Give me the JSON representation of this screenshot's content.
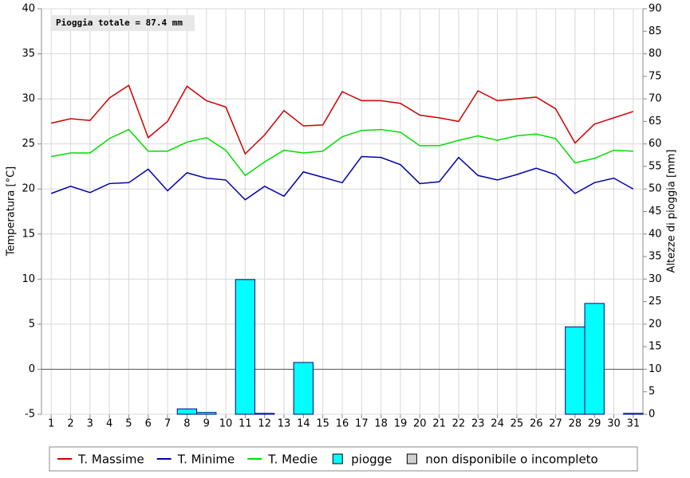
{
  "chart_data": {
    "type": "line",
    "annotation": "Pioggia totale = 87.4 mm",
    "ylabel": "Temperatura [°C]",
    "y2label": "Altezze di pioggia [mm]",
    "x": [
      1,
      2,
      3,
      4,
      5,
      6,
      7,
      8,
      9,
      10,
      11,
      12,
      13,
      14,
      15,
      16,
      17,
      18,
      19,
      20,
      21,
      22,
      23,
      24,
      25,
      26,
      27,
      28,
      29,
      30,
      31
    ],
    "xlim": [
      0.5,
      31.5
    ],
    "xticks": [
      1,
      2,
      3,
      4,
      5,
      6,
      7,
      8,
      9,
      10,
      11,
      12,
      13,
      14,
      15,
      16,
      17,
      18,
      19,
      20,
      21,
      22,
      23,
      24,
      25,
      26,
      27,
      28,
      29,
      30,
      31
    ],
    "ylim": [
      -5,
      40
    ],
    "yticks": [
      -5,
      0,
      5,
      10,
      15,
      20,
      25,
      30,
      35,
      40
    ],
    "y2lim": [
      0,
      90
    ],
    "y2ticks": [
      0,
      5,
      10,
      15,
      20,
      25,
      30,
      35,
      40,
      45,
      50,
      55,
      60,
      65,
      70,
      75,
      80,
      85,
      90
    ],
    "grid": true,
    "series": [
      {
        "name": "T. Massime",
        "color": "#cc0000",
        "type": "line",
        "values": [
          27.3,
          27.8,
          27.6,
          30.1,
          31.5,
          25.7,
          27.5,
          31.4,
          29.8,
          29.1,
          23.9,
          26.0,
          28.7,
          27.0,
          27.1,
          30.8,
          29.8,
          29.8,
          29.5,
          28.2,
          27.9,
          27.5,
          30.9,
          29.8,
          30.0,
          30.2,
          28.9,
          25.1,
          27.2,
          27.9,
          28.6
        ]
      },
      {
        "name": "T. Minime",
        "color": "#0000aa",
        "type": "line",
        "values": [
          19.5,
          20.3,
          19.6,
          20.6,
          20.7,
          22.2,
          19.8,
          21.8,
          21.2,
          21.0,
          18.8,
          20.3,
          19.2,
          21.9,
          21.3,
          20.7,
          23.6,
          23.5,
          22.7,
          20.6,
          20.8,
          23.5,
          21.5,
          21.0,
          21.6,
          22.3,
          21.6,
          19.5,
          20.7,
          21.2,
          20.0
        ]
      },
      {
        "name": "T. Medie",
        "color": "#00dd00",
        "type": "line",
        "values": [
          23.6,
          24.0,
          24.0,
          25.6,
          26.6,
          24.2,
          24.2,
          25.2,
          25.7,
          24.3,
          21.5,
          23.0,
          24.3,
          24.0,
          24.2,
          25.8,
          26.5,
          26.6,
          26.3,
          24.8,
          24.8,
          25.4,
          25.9,
          25.4,
          25.9,
          26.1,
          25.6,
          22.9,
          23.4,
          24.3,
          24.2
        ]
      },
      {
        "name": "piogge",
        "color": "#00ffff",
        "type": "bar",
        "axis": "y2",
        "values": [
          0,
          0,
          0,
          0,
          0,
          0,
          0,
          1.2,
          0.4,
          0,
          29.9,
          0.2,
          0,
          11.5,
          0,
          0,
          0,
          0,
          0,
          0,
          0,
          0,
          0,
          0,
          0,
          0,
          0,
          19.4,
          24.6,
          0,
          0.2
        ]
      }
    ],
    "legend_extra": {
      "label": "non disponibile o incompleto",
      "color": "#d0d0d0"
    }
  }
}
